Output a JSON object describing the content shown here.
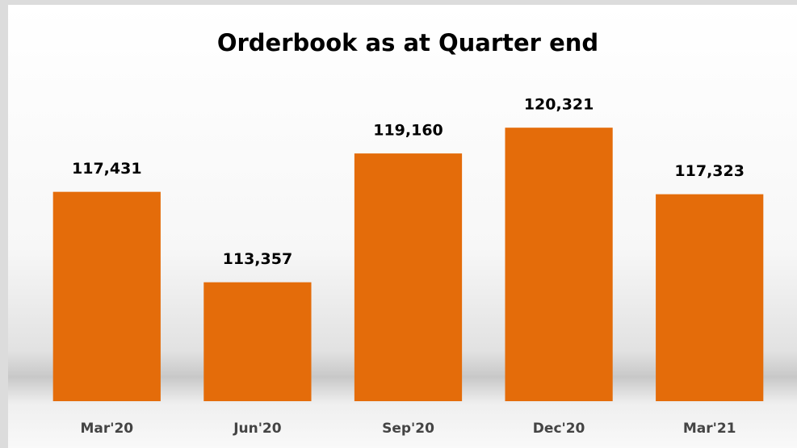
{
  "chart_data": {
    "type": "bar",
    "title": "Orderbook as at Quarter end",
    "categories": [
      "Mar'20",
      "Jun'20",
      "Sep'20",
      "Dec'20",
      "Mar'21"
    ],
    "values": [
      117431,
      113357,
      119160,
      120321,
      117323
    ],
    "value_labels": [
      "117,431",
      "113,357",
      "119,160",
      "120,321",
      "117,323"
    ],
    "color": "#e46c0a",
    "ylim": [
      108000,
      122000
    ]
  }
}
